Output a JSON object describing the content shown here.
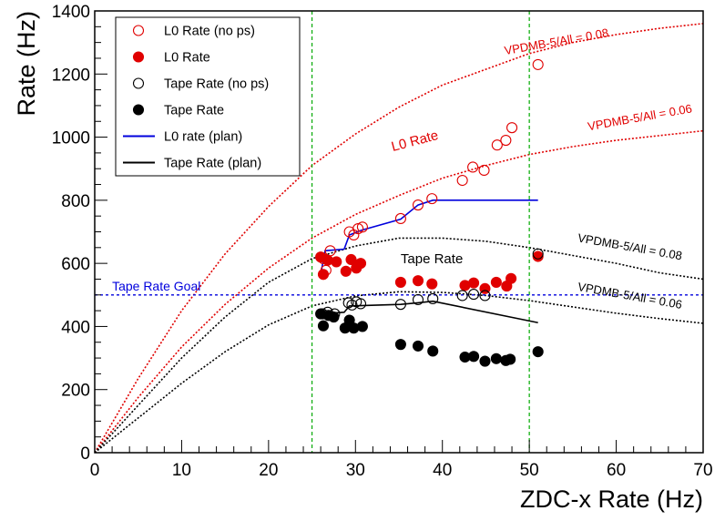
{
  "chart_data": {
    "type": "scatter",
    "xlabel": "ZDC-x Rate (Hz)",
    "ylabel": "Rate (Hz)",
    "xlim": [
      0,
      70
    ],
    "ylim": [
      0,
      1400
    ],
    "xticks": [
      0,
      10,
      20,
      30,
      40,
      50,
      60,
      70
    ],
    "yticks": [
      0,
      200,
      400,
      600,
      800,
      1000,
      1200,
      1400
    ],
    "grid": false,
    "legend_position": "top-left",
    "legend": [
      {
        "label": "L0 Rate (no ps)",
        "marker": "open-circle",
        "color": "#e00000"
      },
      {
        "label": "L0 Rate",
        "marker": "filled-circle",
        "color": "#e00000"
      },
      {
        "label": "Tape Rate (no ps)",
        "marker": "open-circle",
        "color": "#000000"
      },
      {
        "label": "Tape Rate",
        "marker": "filled-circle",
        "color": "#000000"
      },
      {
        "label": "L0 rate (plan)",
        "marker": "line",
        "color": "#0000dd"
      },
      {
        "label": "Tape Rate (plan)",
        "marker": "line",
        "color": "#000000"
      }
    ],
    "series": [
      {
        "name": "L0 Rate (no ps)",
        "style": "open",
        "color": "#e00000",
        "points": [
          [
            26.3,
            615
          ],
          [
            26.6,
            578
          ],
          [
            27.1,
            640
          ],
          [
            29.3,
            700
          ],
          [
            29.8,
            690
          ],
          [
            30.3,
            710
          ],
          [
            30.8,
            715
          ],
          [
            35.2,
            742
          ],
          [
            37.2,
            785
          ],
          [
            38.8,
            805
          ],
          [
            42.3,
            863
          ],
          [
            43.5,
            905
          ],
          [
            44.8,
            895
          ],
          [
            46.3,
            975
          ],
          [
            47.3,
            990
          ],
          [
            48.0,
            1030
          ],
          [
            51.0,
            1230
          ]
        ]
      },
      {
        "name": "L0 Rate",
        "style": "filled",
        "color": "#e00000",
        "points": [
          [
            26.0,
            620
          ],
          [
            26.3,
            565
          ],
          [
            26.8,
            610
          ],
          [
            27.8,
            605
          ],
          [
            28.9,
            575
          ],
          [
            29.5,
            612
          ],
          [
            30.1,
            585
          ],
          [
            30.6,
            600
          ],
          [
            35.2,
            540
          ],
          [
            37.2,
            545
          ],
          [
            38.8,
            535
          ],
          [
            42.6,
            530
          ],
          [
            43.6,
            538
          ],
          [
            44.9,
            520
          ],
          [
            46.2,
            540
          ],
          [
            47.4,
            528
          ],
          [
            47.9,
            552
          ],
          [
            51.0,
            622
          ]
        ]
      },
      {
        "name": "Tape Rate (no ps)",
        "style": "open",
        "color": "#000000",
        "points": [
          [
            26.2,
            440
          ],
          [
            26.8,
            445
          ],
          [
            27.6,
            440
          ],
          [
            29.2,
            475
          ],
          [
            29.6,
            468
          ],
          [
            30.1,
            478
          ],
          [
            30.6,
            472
          ],
          [
            35.2,
            470
          ],
          [
            37.2,
            485
          ],
          [
            38.9,
            488
          ],
          [
            42.3,
            498
          ],
          [
            43.6,
            502
          ],
          [
            44.9,
            498
          ],
          [
            51.0,
            630
          ]
        ]
      },
      {
        "name": "Tape Rate",
        "style": "filled",
        "color": "#000000",
        "points": [
          [
            26.0,
            440
          ],
          [
            26.3,
            402
          ],
          [
            26.9,
            435
          ],
          [
            27.5,
            430
          ],
          [
            28.8,
            395
          ],
          [
            29.3,
            420
          ],
          [
            29.8,
            395
          ],
          [
            30.8,
            400
          ],
          [
            35.2,
            343
          ],
          [
            37.2,
            338
          ],
          [
            38.9,
            322
          ],
          [
            42.6,
            303
          ],
          [
            43.6,
            305
          ],
          [
            44.9,
            290
          ],
          [
            46.2,
            298
          ],
          [
            47.3,
            292
          ],
          [
            47.8,
            296
          ],
          [
            51.0,
            320
          ]
        ]
      }
    ],
    "plan_lines": [
      {
        "name": "L0 rate (plan)",
        "color": "#0000dd",
        "points": [
          [
            26.0,
            565
          ],
          [
            26.5,
            640
          ],
          [
            28.7,
            645
          ],
          [
            29.3,
            690
          ],
          [
            30.7,
            705
          ],
          [
            35.2,
            740
          ],
          [
            37.2,
            785
          ],
          [
            38.9,
            800
          ],
          [
            51.0,
            800
          ]
        ]
      },
      {
        "name": "Tape Rate (plan)",
        "color": "#000000",
        "points": [
          [
            26.0,
            440
          ],
          [
            28.7,
            445
          ],
          [
            29.3,
            465
          ],
          [
            35.2,
            470
          ],
          [
            37.2,
            475
          ],
          [
            38.9,
            480
          ],
          [
            51.0,
            412
          ]
        ]
      }
    ],
    "curves": [
      {
        "label": "VPDMB-5/All = 0.08",
        "color": "#e00000",
        "label_at": [
          53.2,
          1290
        ],
        "label_rotation": -10,
        "points": [
          [
            0,
            0
          ],
          [
            5,
            235
          ],
          [
            10,
            450
          ],
          [
            15,
            630
          ],
          [
            20,
            780
          ],
          [
            25,
            910
          ],
          [
            30,
            1010
          ],
          [
            35,
            1095
          ],
          [
            40,
            1165
          ],
          [
            45,
            1215
          ],
          [
            50,
            1265
          ],
          [
            55,
            1300
          ],
          [
            60,
            1325
          ],
          [
            65,
            1345
          ],
          [
            70,
            1360
          ]
        ]
      },
      {
        "label": "VPDMB-5/All = 0.06",
        "color": "#e00000",
        "label_at": [
          62.8,
          1050
        ],
        "label_rotation": -10,
        "points": [
          [
            0,
            0
          ],
          [
            5,
            175
          ],
          [
            10,
            335
          ],
          [
            15,
            470
          ],
          [
            20,
            585
          ],
          [
            25,
            680
          ],
          [
            30,
            755
          ],
          [
            35,
            815
          ],
          [
            40,
            870
          ],
          [
            45,
            910
          ],
          [
            50,
            945
          ],
          [
            55,
            970
          ],
          [
            60,
            990
          ],
          [
            65,
            1005
          ],
          [
            70,
            1020
          ]
        ]
      },
      {
        "label": "VPDMB-5/All = 0.08",
        "color": "#000000",
        "label_at": [
          61.5,
          640
        ],
        "label_rotation": 10,
        "points": [
          [
            0,
            0
          ],
          [
            5,
            150
          ],
          [
            10,
            300
          ],
          [
            15,
            430
          ],
          [
            20,
            540
          ],
          [
            25,
            615
          ],
          [
            30,
            655
          ],
          [
            35,
            680
          ],
          [
            40,
            680
          ],
          [
            45,
            670
          ],
          [
            50,
            650
          ],
          [
            55,
            625
          ],
          [
            60,
            600
          ],
          [
            65,
            570
          ],
          [
            70,
            550
          ]
        ]
      },
      {
        "label": "VPDMB-5/All = 0.06",
        "color": "#000000",
        "label_at": [
          61.5,
          485
        ],
        "label_rotation": 10,
        "points": [
          [
            0,
            0
          ],
          [
            5,
            110
          ],
          [
            10,
            220
          ],
          [
            15,
            320
          ],
          [
            20,
            405
          ],
          [
            25,
            465
          ],
          [
            30,
            497
          ],
          [
            35,
            510
          ],
          [
            40,
            508
          ],
          [
            45,
            498
          ],
          [
            50,
            482
          ],
          [
            55,
            462
          ],
          [
            60,
            442
          ],
          [
            65,
            425
          ],
          [
            70,
            410
          ]
        ]
      }
    ],
    "goal_line": {
      "label": "Tape Rate Goal",
      "y": 500,
      "color": "#0000dd"
    },
    "vertical_lines": {
      "x": [
        25,
        50
      ],
      "color": "#00aa00"
    },
    "annotations": [
      {
        "text": "L0 Rate",
        "at": [
          34.3,
          955
        ],
        "color": "#e00000",
        "rotation": -15
      },
      {
        "text": "Tape Rate",
        "at": [
          35.2,
          600
        ],
        "color": "#000000",
        "rotation": 0
      }
    ]
  }
}
